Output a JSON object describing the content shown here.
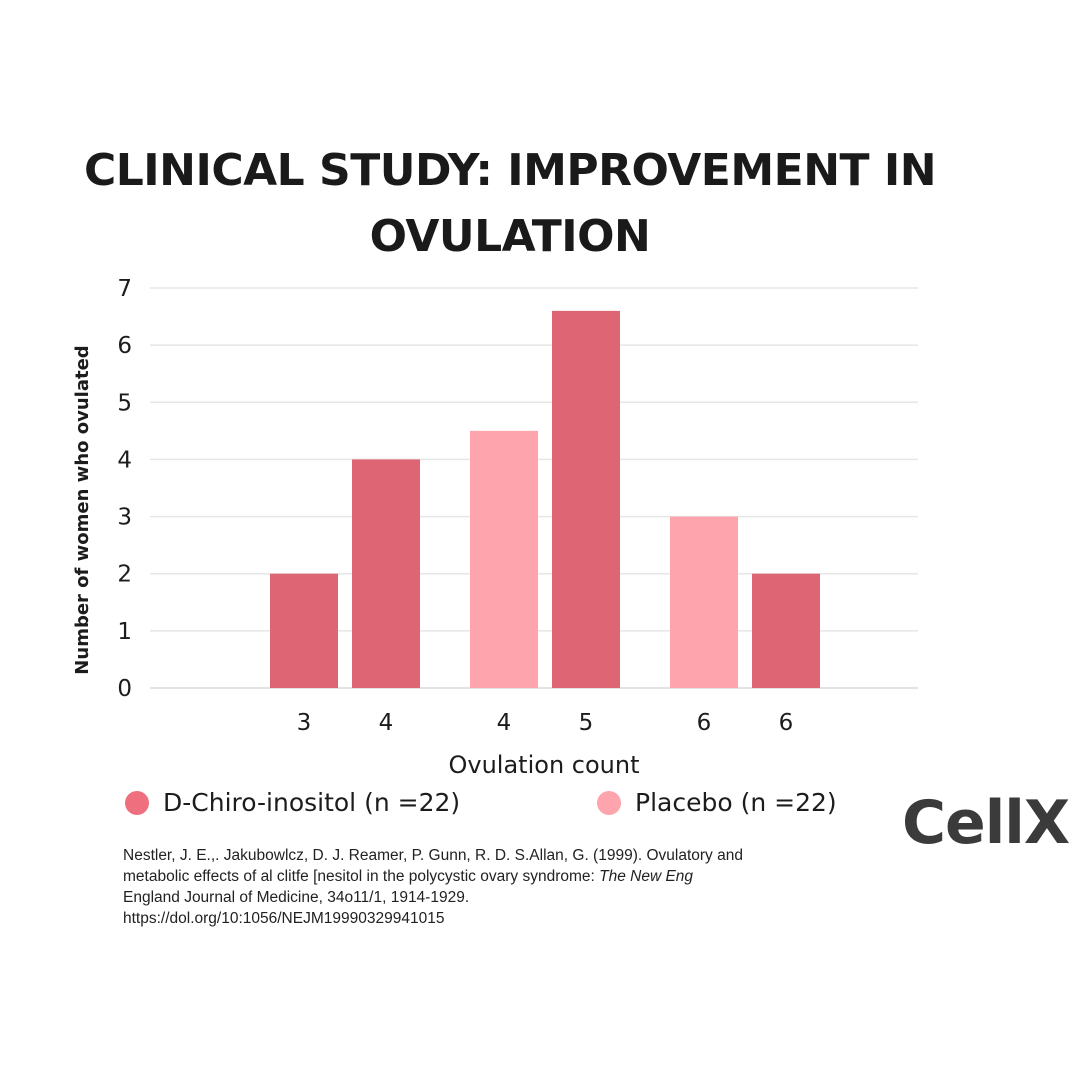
{
  "title_lines": [
    "CLINICAL STUDY: IMPROVEMENT IN",
    "OVULATION"
  ],
  "brand": "CellX",
  "chart_data": {
    "type": "bar",
    "title": "CLINICAL STUDY: IMPROVEMENT IN OVULATION",
    "xlabel": "Ovulation count",
    "ylabel": "Number of women who ovulated",
    "ylim": [
      0,
      7
    ],
    "yticks": [
      0,
      1,
      2,
      3,
      4,
      5,
      6,
      7
    ],
    "grid": true,
    "legend_position": "bottom",
    "bars": [
      {
        "category": "3",
        "series": "D-Chiro-inositol (n =22)",
        "value": 2
      },
      {
        "category": "4",
        "series": "D-Chiro-inositol (n =22)",
        "value": 4
      },
      {
        "category": "4",
        "series": "Placebo (n =22)",
        "value": 4.5
      },
      {
        "category": "5",
        "series": "D-Chiro-inositol (n =22)",
        "value": 6.6
      },
      {
        "category": "6",
        "series": "Placebo (n =22)",
        "value": 3
      },
      {
        "category": "6",
        "series": "D-Chiro-inositol (n =22)",
        "value": 2
      }
    ],
    "series": [
      {
        "name": "D-Chiro-inositol (n =22)",
        "color": "#de6574",
        "legend_color": "#ef6f7e"
      },
      {
        "name": "Placebo (n =22)",
        "color": "#fda4ac",
        "legend_color": "#fda4ac"
      }
    ]
  },
  "citation": {
    "line1": "Nestler, J. E.,. Jakubowlcz, D. J. Reamer, P. Gunn, R. D. S.Allan, G. (1999). Ovulatory and",
    "line2_pre": "metabolic effects of al clitfe [nesitol in the polycystic ovary syndrome: ",
    "line2_em": "The New Eng",
    "line3": "England Journal of Medicine, 34o11/1, 1914-1929.",
    "line4": "https://dol.org/10:1056/NEJM19990329941015"
  }
}
